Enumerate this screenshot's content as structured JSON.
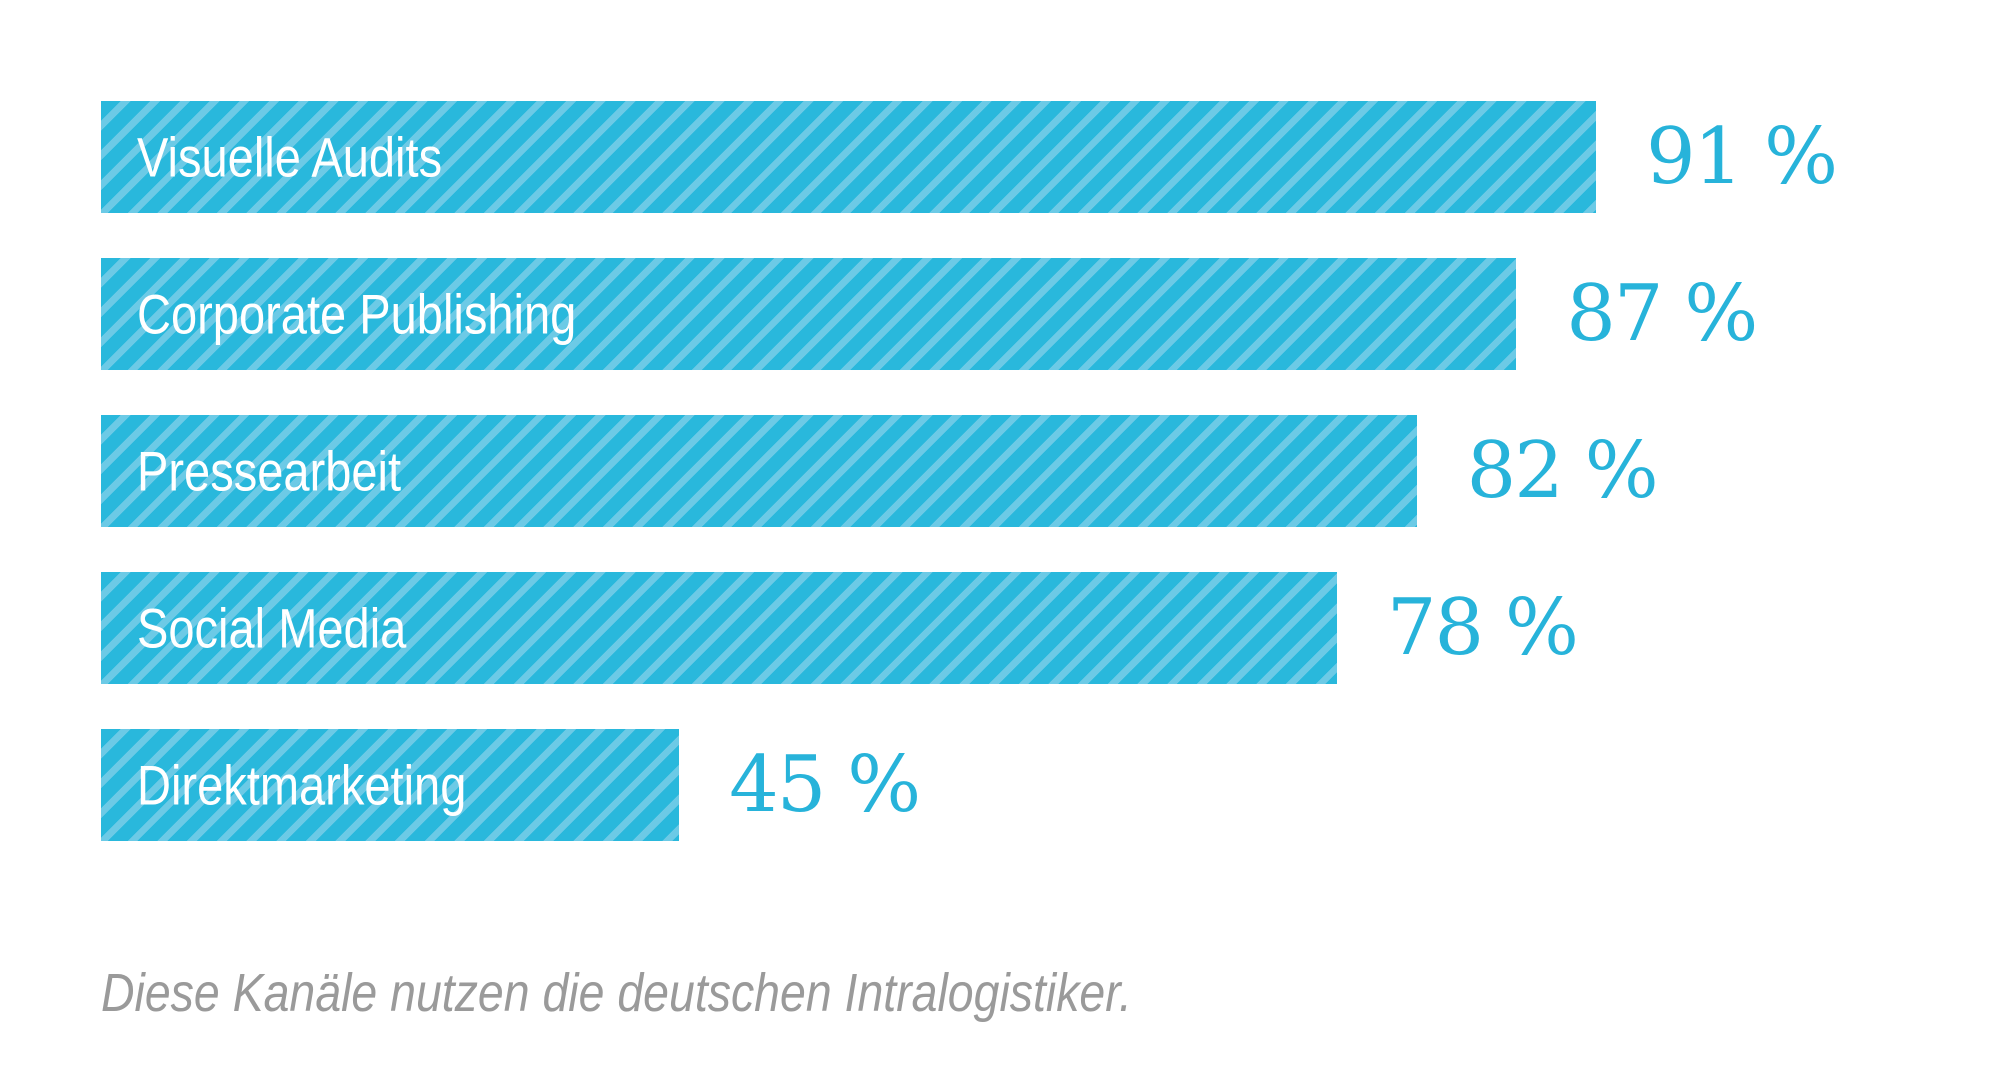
{
  "chart_data": {
    "type": "bar",
    "orientation": "horizontal",
    "categories": [
      "Visuelle Audits",
      "Corporate Publishing",
      "Pressearbeit",
      "Social Media",
      "Direktmarketing"
    ],
    "values": [
      91,
      87,
      82,
      78,
      45
    ],
    "value_labels": [
      "91 %",
      "87 %",
      "82 %",
      "78 %",
      "45 %"
    ],
    "unit": "%",
    "xlim": [
      16,
      91
    ],
    "grid": false,
    "bar_color": "#29b8dc",
    "stripe_color": "#6ccae6",
    "value_color": "#27b3da",
    "caption": "Diese Kanäle nutzen die deutschen Intralogistiker."
  }
}
